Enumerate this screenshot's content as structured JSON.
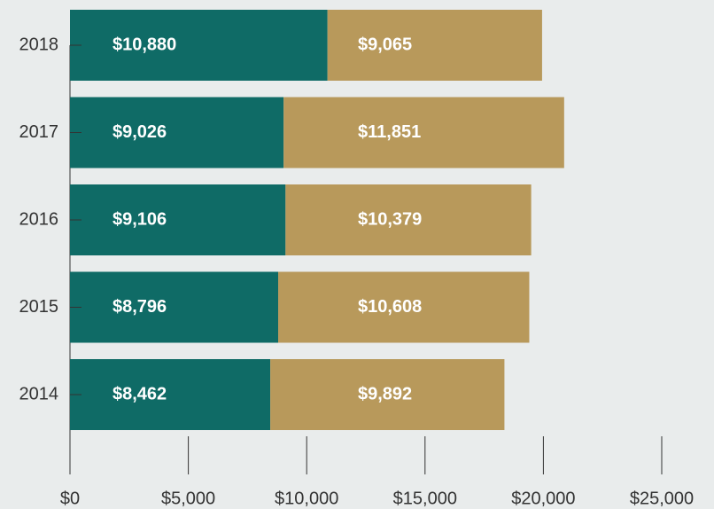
{
  "chart_data": {
    "type": "stacked-barh",
    "categories": [
      "2018",
      "2017",
      "2016",
      "2015",
      "2014"
    ],
    "series": [
      {
        "color": "#0f6b66",
        "values": [
          10880,
          9026,
          9106,
          8796,
          8462
        ],
        "value_labels": [
          "$10,880",
          "$9,026",
          "$9,106",
          "$8,796",
          "$8,462"
        ]
      },
      {
        "color": "#b8995b",
        "values": [
          9065,
          11851,
          10379,
          10608,
          9892
        ],
        "value_labels": [
          "$9,065",
          "$11,851",
          "$10,379",
          "$10,608",
          "$9,892"
        ]
      }
    ],
    "xlim": [
      0,
      25000
    ],
    "xticks": [
      {
        "value": 0,
        "label": "$0"
      },
      {
        "value": 5000,
        "label": "$5,000"
      },
      {
        "value": 10000,
        "label": "$10,000"
      },
      {
        "value": 15000,
        "label": "$15,000"
      },
      {
        "value": 20000,
        "label": "$20,000"
      },
      {
        "value": 25000,
        "label": "$25,000"
      }
    ]
  }
}
